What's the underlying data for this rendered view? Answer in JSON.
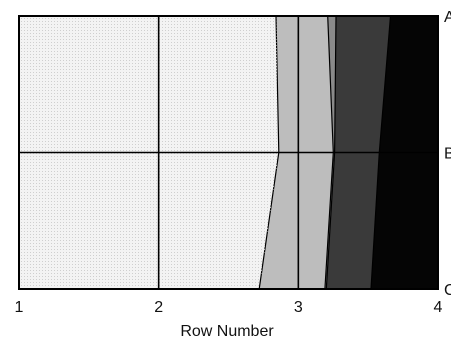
{
  "chart_data": {
    "type": "area",
    "xlabel": "Row Number",
    "xlim": [
      1,
      4
    ],
    "x_ticks": [
      "1",
      "2",
      "3",
      "4"
    ],
    "y_ticks": [
      "A",
      "B",
      "C"
    ],
    "grid": true,
    "regions": [
      {
        "color": "#f3f3f3",
        "boundary": [
          {
            "y": 0,
            "x": 2.84
          },
          {
            "y": 1,
            "x": 2.86
          },
          {
            "y": 2,
            "x": 2.72
          }
        ]
      },
      {
        "color": "#bdbdbd",
        "boundary": [
          {
            "y": 0,
            "x": 3.21
          },
          {
            "y": 1,
            "x": 3.25
          },
          {
            "y": 2,
            "x": 3.19
          }
        ]
      },
      {
        "color": "#8a8a8a",
        "boundary": [
          {
            "y": 0,
            "x": 3.27
          },
          {
            "y": 1,
            "x": 3.26
          },
          {
            "y": 2,
            "x": 3.2
          }
        ]
      },
      {
        "color": "#3a3a3a",
        "boundary": [
          {
            "y": 0,
            "x": 3.66
          },
          {
            "y": 1,
            "x": 3.58
          },
          {
            "y": 2,
            "x": 3.52
          }
        ]
      },
      {
        "color": "#050505",
        "boundary": [
          {
            "y": 0,
            "x": 4.0
          },
          {
            "y": 1,
            "x": 4.0
          },
          {
            "y": 2,
            "x": 4.0
          }
        ]
      }
    ]
  }
}
